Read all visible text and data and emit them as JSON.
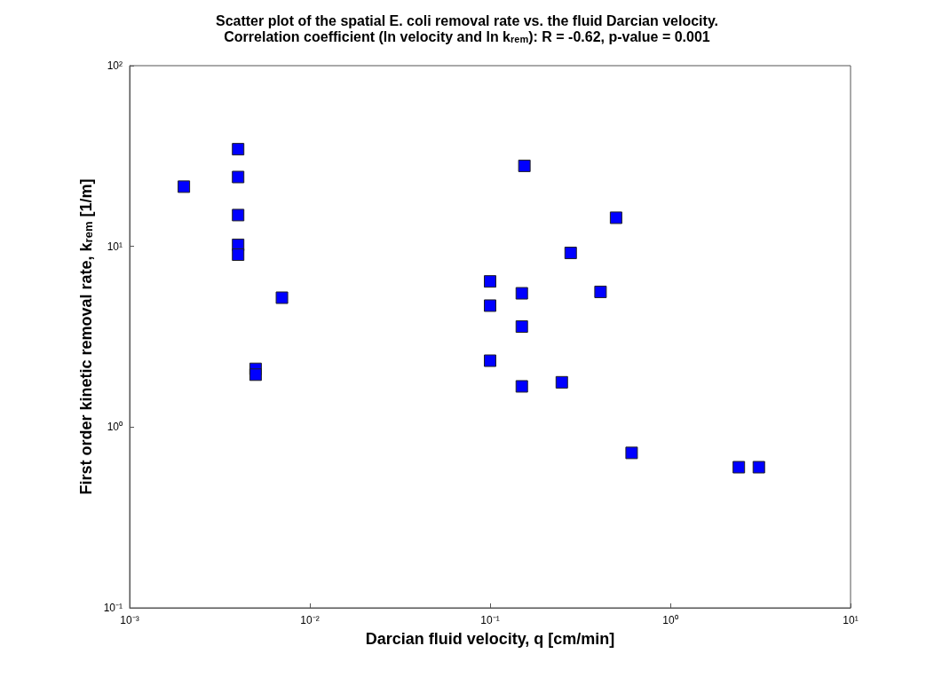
{
  "chart_data": {
    "type": "scatter",
    "title": "Scatter plot of the spatial E. coli removal rate vs. the fluid Darcian velocity.",
    "subtitle": "Correlation coefficient (ln velocity and ln k$_{rem}$): R = -0.62, p-value = 0.001",
    "xlabel": "Darcian fluid velocity, q [cm/min]",
    "ylabel": "First order kinetic removal rate, k$_{rem}$ [1/m]",
    "log": "xy",
    "grid": false,
    "marker": "square",
    "xlim": [
      0.001,
      10
    ],
    "ylim": [
      0.1,
      100
    ],
    "xticks": [
      {
        "value": 0.001,
        "label": "10⁻³"
      },
      {
        "value": 0.01,
        "label": "10⁻²"
      },
      {
        "value": 0.1,
        "label": "10⁻¹"
      },
      {
        "value": 1,
        "label": "10⁰"
      },
      {
        "value": 10,
        "label": "10¹"
      }
    ],
    "yticks": [
      {
        "value": 0.1,
        "label": "10⁻¹"
      },
      {
        "value": 1,
        "label": "10⁰"
      },
      {
        "value": 10,
        "label": "10¹"
      },
      {
        "value": 100,
        "label": "10²"
      }
    ],
    "series": [
      {
        "color": "#0000ff",
        "x": [
          0.002,
          0.004,
          0.004,
          0.004,
          0.004,
          0.004,
          0.007,
          0.005,
          0.005,
          0.1,
          0.1,
          0.1,
          0.15,
          0.15,
          0.15,
          0.155,
          0.25,
          0.28,
          0.41,
          0.5,
          0.61,
          2.4,
          3.1
        ],
        "values": [
          21.4,
          34.5,
          24.2,
          14.9,
          10.2,
          9,
          5.2,
          2.1,
          1.95,
          6.4,
          4.7,
          2.33,
          5.5,
          3.6,
          1.68,
          27.9,
          1.77,
          9.2,
          5.6,
          14.4,
          0.72,
          0.6,
          0.6
        ]
      }
    ]
  }
}
